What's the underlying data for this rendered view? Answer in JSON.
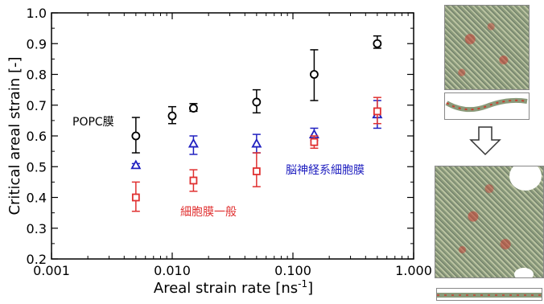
{
  "chart_data": {
    "type": "scatter",
    "xlabel": "Areal strain rate [ns",
    "xlabel_sup": "-1",
    "xlabel_end": "]",
    "ylabel": "Critical areal strain [-]",
    "xscale": "log",
    "xlim": [
      0.001,
      1.0
    ],
    "ylim": [
      0.2,
      1.0
    ],
    "x_ticks": [
      0.001,
      0.01,
      0.1,
      1.0
    ],
    "x_tick_labels": [
      "0.001",
      "0.010",
      "0.100",
      "1.000"
    ],
    "y_ticks": [
      0.2,
      0.3,
      0.4,
      0.5,
      0.6,
      0.7,
      0.8,
      0.9,
      1.0
    ],
    "y_tick_labels": [
      "0.2",
      "0.3",
      "0.4",
      "0.5",
      "0.6",
      "0.7",
      "0.8",
      "0.9",
      "1.0"
    ],
    "series": [
      {
        "name": "POPC膜",
        "color": "#000000",
        "marker": "circle",
        "points": [
          {
            "x": 0.005,
            "y": 0.6,
            "ylo": 0.545,
            "yhi": 0.66
          },
          {
            "x": 0.01,
            "y": 0.665,
            "ylo": 0.64,
            "yhi": 0.695
          },
          {
            "x": 0.015,
            "y": 0.69,
            "ylo": 0.68,
            "yhi": 0.705
          },
          {
            "x": 0.05,
            "y": 0.71,
            "ylo": 0.675,
            "yhi": 0.75
          },
          {
            "x": 0.15,
            "y": 0.8,
            "ylo": 0.715,
            "yhi": 0.88
          },
          {
            "x": 0.5,
            "y": 0.9,
            "ylo": 0.885,
            "yhi": 0.925
          }
        ]
      },
      {
        "name": "脳神経系細胞膜",
        "color": "#2020c0",
        "marker": "triangle",
        "points": [
          {
            "x": 0.005,
            "y": 0.505,
            "ylo": 0.5,
            "yhi": 0.51
          },
          {
            "x": 0.015,
            "y": 0.575,
            "ylo": 0.54,
            "yhi": 0.6
          },
          {
            "x": 0.05,
            "y": 0.575,
            "ylo": 0.545,
            "yhi": 0.605
          },
          {
            "x": 0.15,
            "y": 0.605,
            "ylo": 0.585,
            "yhi": 0.625
          },
          {
            "x": 0.5,
            "y": 0.67,
            "ylo": 0.625,
            "yhi": 0.715
          }
        ]
      },
      {
        "name": "細胞膜一般",
        "color": "#e03030",
        "marker": "square",
        "points": [
          {
            "x": 0.005,
            "y": 0.4,
            "ylo": 0.355,
            "yhi": 0.45
          },
          {
            "x": 0.015,
            "y": 0.455,
            "ylo": 0.42,
            "yhi": 0.49
          },
          {
            "x": 0.05,
            "y": 0.485,
            "ylo": 0.435,
            "yhi": 0.545
          },
          {
            "x": 0.15,
            "y": 0.58,
            "ylo": 0.56,
            "yhi": 0.6
          },
          {
            "x": 0.5,
            "y": 0.68,
            "ylo": 0.64,
            "yhi": 0.725
          }
        ]
      }
    ]
  },
  "annotations": {
    "popc": "POPC膜",
    "neural": "脳神経系細胞膜",
    "general": "細胞膜一般"
  },
  "images": {
    "arrow_icon": "down-arrow-icon"
  }
}
